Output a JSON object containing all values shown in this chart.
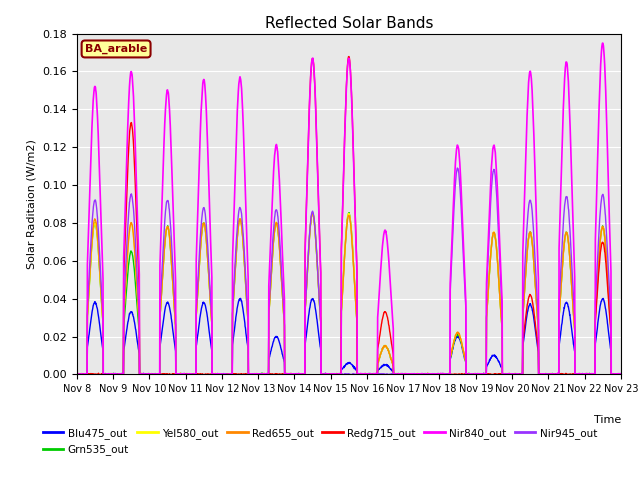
{
  "title": "Reflected Solar Bands",
  "xlabel": "Time",
  "ylabel": "Solar Raditaion (W/m2)",
  "ylim": [
    0,
    0.18
  ],
  "yticks": [
    0.0,
    0.02,
    0.04,
    0.06,
    0.08,
    0.1,
    0.12,
    0.14,
    0.16,
    0.18
  ],
  "n_days": 15,
  "annotation_text": "BA_arable",
  "annotation_color": "#8B0000",
  "annotation_bg": "#FFFF99",
  "series_order": [
    "Blu475_out",
    "Grn535_out",
    "Yel580_out",
    "Red655_out",
    "Redg715_out",
    "Nir840_out",
    "Nir945_out"
  ],
  "series": {
    "Blu475_out": {
      "color": "#0000FF",
      "lw": 1.0
    },
    "Grn535_out": {
      "color": "#00CC00",
      "lw": 1.0
    },
    "Yel580_out": {
      "color": "#FFFF00",
      "lw": 1.0
    },
    "Red655_out": {
      "color": "#FF8800",
      "lw": 1.0
    },
    "Redg715_out": {
      "color": "#FF0000",
      "lw": 1.0
    },
    "Nir840_out": {
      "color": "#FF00FF",
      "lw": 1.2
    },
    "Nir945_out": {
      "color": "#9933FF",
      "lw": 1.0
    }
  },
  "xtick_labels": [
    "Nov 8",
    "Nov 9",
    "Nov 10",
    "Nov 11",
    "Nov 12",
    "Nov 13",
    "Nov 14",
    "Nov 15",
    "Nov 16",
    "Nov 17",
    "Nov 18",
    "Nov 19",
    "Nov 20",
    "Nov 21",
    "Nov 22",
    "Nov 23"
  ],
  "background_color": "#E8E8E8",
  "fig_bg": "#FFFFFF",
  "nir840_peaks": [
    0.152,
    0.16,
    0.15,
    0.156,
    0.157,
    0.121,
    0.167,
    0.167,
    0.076,
    0.0,
    0.121,
    0.121,
    0.16,
    0.165,
    0.175
  ],
  "nir945_peaks": [
    0.092,
    0.095,
    0.092,
    0.088,
    0.088,
    0.087,
    0.086,
    0.0,
    0.0,
    0.0,
    0.109,
    0.108,
    0.092,
    0.094,
    0.095
  ],
  "redg715_peaks": [
    0.0,
    0.133,
    0.0,
    0.0,
    0.0,
    0.0,
    0.167,
    0.168,
    0.033,
    0.0,
    0.0,
    0.0,
    0.042,
    0.0,
    0.07
  ],
  "red655_peaks": [
    0.082,
    0.08,
    0.078,
    0.08,
    0.082,
    0.08,
    0.085,
    0.084,
    0.015,
    0.0,
    0.022,
    0.075,
    0.075,
    0.075,
    0.078
  ],
  "yel580_peaks": [
    0.08,
    0.08,
    0.078,
    0.08,
    0.082,
    0.08,
    0.085,
    0.085,
    0.015,
    0.0,
    0.022,
    0.075,
    0.075,
    0.075,
    0.078
  ],
  "grn535_peaks": [
    0.08,
    0.065,
    0.078,
    0.08,
    0.082,
    0.08,
    0.085,
    0.085,
    0.015,
    0.0,
    0.021,
    0.075,
    0.075,
    0.075,
    0.078
  ],
  "blu475_peaks": [
    0.038,
    0.033,
    0.038,
    0.038,
    0.04,
    0.02,
    0.04,
    0.006,
    0.005,
    0.0,
    0.02,
    0.01,
    0.037,
    0.038,
    0.04
  ]
}
